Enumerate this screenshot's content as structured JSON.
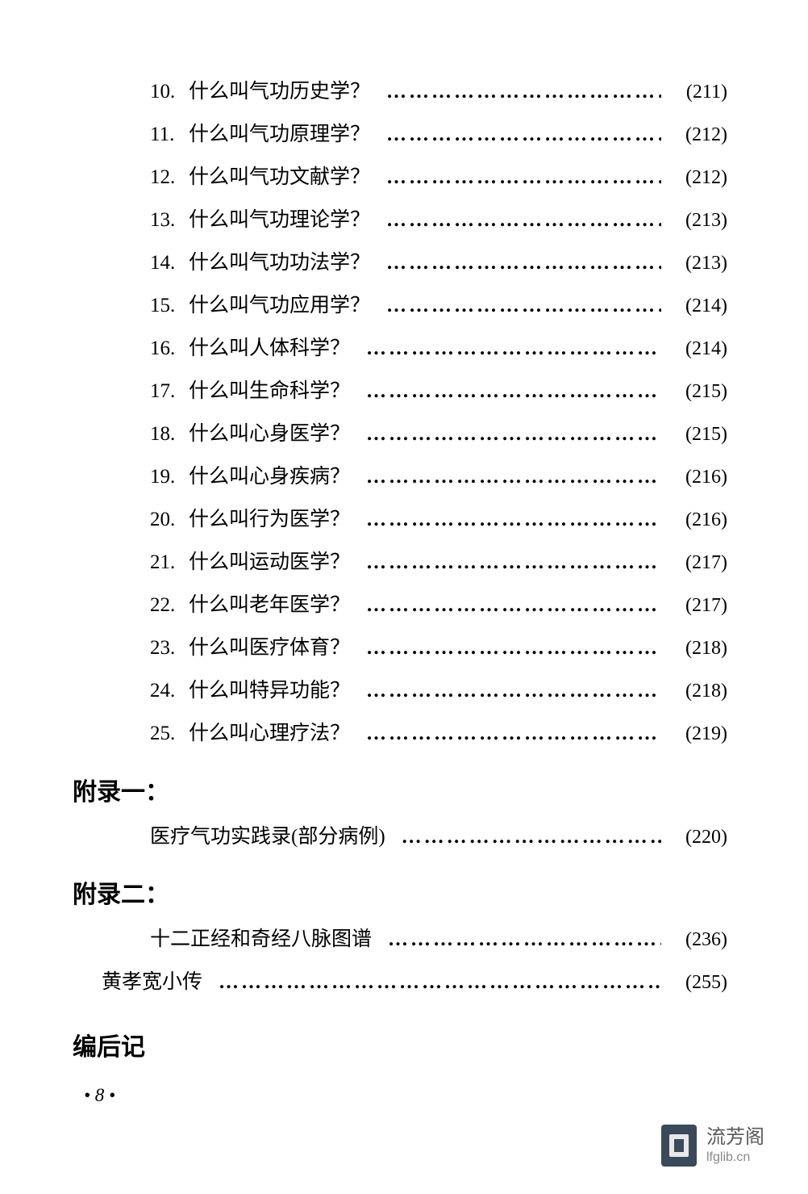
{
  "background_color": "#ffffff",
  "text_color": "#000000",
  "font_family": "SimSun",
  "leader_char": "…………………………………………………………",
  "entries": [
    {
      "num": "10.",
      "text": "什么叫气功历史学？",
      "page": "(211)"
    },
    {
      "num": "11.",
      "text": "什么叫气功原理学？",
      "page": "(212)"
    },
    {
      "num": "12.",
      "text": "什么叫气功文献学？",
      "page": "(212)"
    },
    {
      "num": "13.",
      "text": "什么叫气功理论学？",
      "page": "(213)"
    },
    {
      "num": "14.",
      "text": "什么叫气功功法学？",
      "page": "(213)"
    },
    {
      "num": "15.",
      "text": "什么叫气功应用学？",
      "page": "(214)"
    },
    {
      "num": "16.",
      "text": "什么叫人体科学？",
      "page": "(214)"
    },
    {
      "num": "17.",
      "text": "什么叫生命科学？",
      "page": "(215)"
    },
    {
      "num": "18.",
      "text": "什么叫心身医学？",
      "page": "(215)"
    },
    {
      "num": "19.",
      "text": "什么叫心身疾病？",
      "page": "(216)"
    },
    {
      "num": "20.",
      "text": "什么叫行为医学？",
      "page": "(216)"
    },
    {
      "num": "21.",
      "text": "什么叫运动医学？",
      "page": "(217)"
    },
    {
      "num": "22.",
      "text": "什么叫老年医学？",
      "page": "(217)"
    },
    {
      "num": "23.",
      "text": "什么叫医疗体育？",
      "page": "(218)"
    },
    {
      "num": "24.",
      "text": "什么叫特异功能？",
      "page": "(218)"
    },
    {
      "num": "25.",
      "text": "什么叫心理疗法？",
      "page": "(219)"
    }
  ],
  "appendix1": {
    "heading": "附录一：",
    "entry_text": "医疗气功实践录(部分病例)",
    "entry_page": "(220)"
  },
  "appendix2": {
    "heading": "附录二：",
    "entry_text": "十二正经和奇经八脉图谱",
    "entry_page": "(236)"
  },
  "author_bio": {
    "text": "黄孝宽小传",
    "page": "(255)"
  },
  "afterword": "编后记",
  "page_marker": "• 8 •",
  "footer": {
    "cn": "流芳阁",
    "en": "lfglib.cn"
  }
}
